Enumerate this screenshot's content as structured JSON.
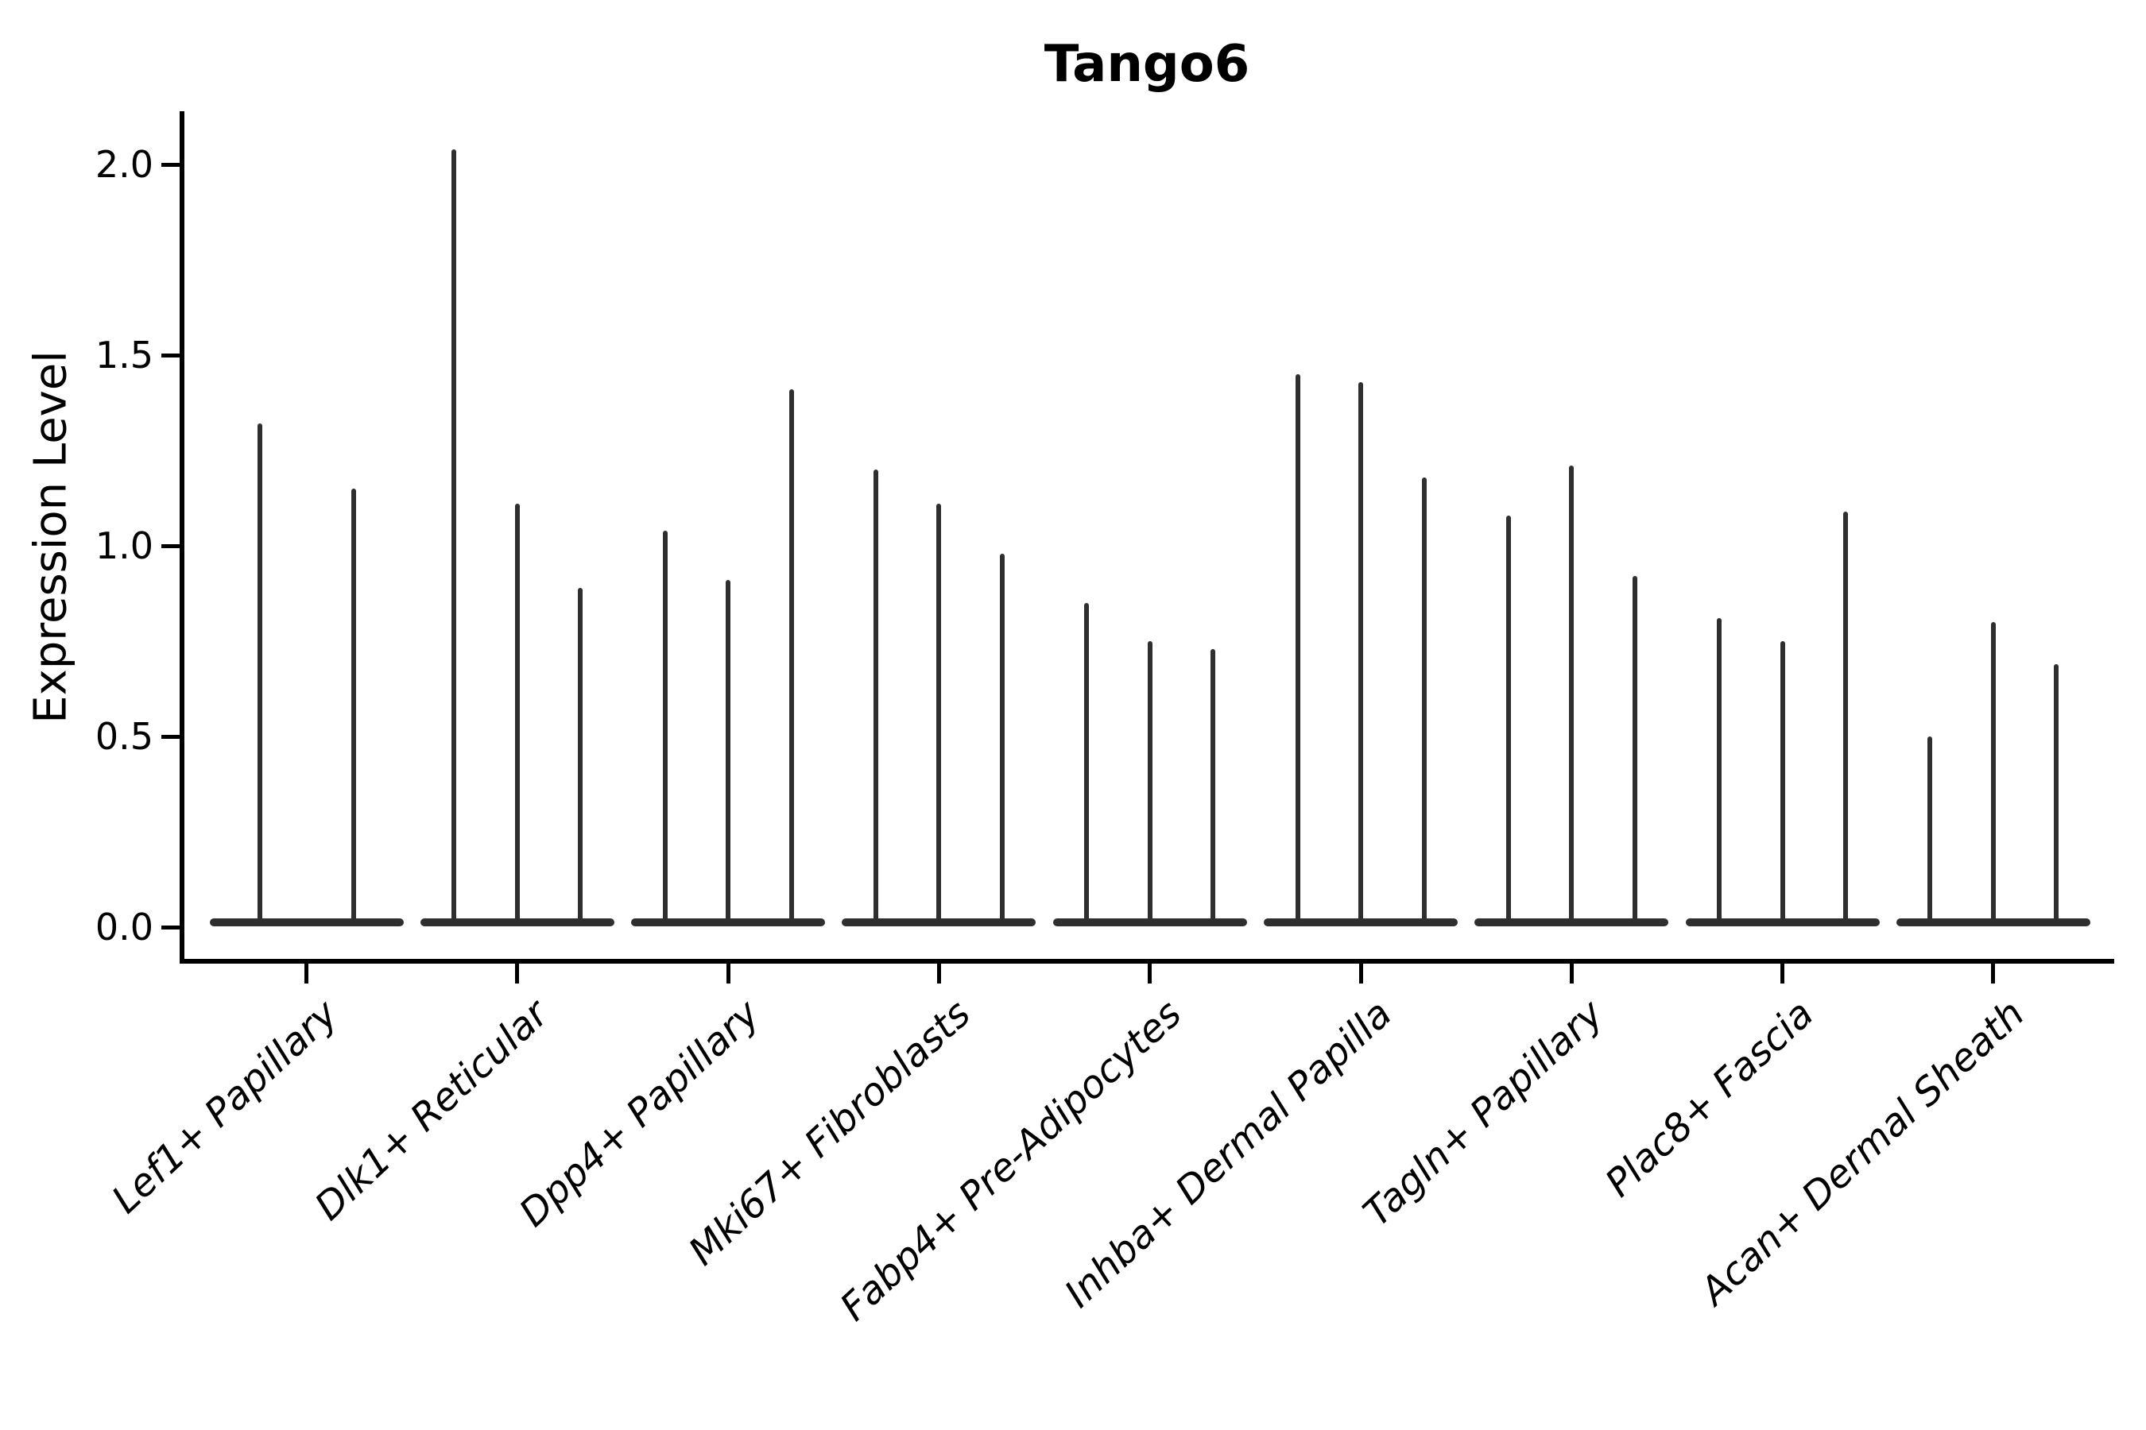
{
  "figure": {
    "background": "#ffffff"
  },
  "chart_data": {
    "type": "violin",
    "title": "Tango6",
    "xlabel": "",
    "ylabel": "Expression Level",
    "ylim": [
      0,
      2.14
    ],
    "yticks": [
      0.0,
      0.5,
      1.0,
      1.5,
      2.0
    ],
    "ytick_labels": [
      "0.0",
      "0.5",
      "1.0",
      "1.5",
      "2.0"
    ],
    "grid": false,
    "legend": null,
    "spines": [
      "left",
      "bottom"
    ],
    "categories": [
      "Lef1+ Papillary",
      "Dlk1+ Reticular",
      "Dpp4+ Papillary",
      "Mki67+ Fibroblasts",
      "Fabp4+ Pre-Adipocytes",
      "Inhba+ Dermal Papilla",
      "Tagln+ Papillary",
      "Plac8+ Fascia",
      "Acan+ Dermal Sheath"
    ],
    "series": [
      {
        "category": "Lef1+ Papillary",
        "violin_tip_values": [
          1.32,
          1.15
        ]
      },
      {
        "category": "Dlk1+ Reticular",
        "violin_tip_values": [
          2.04,
          1.11,
          0.89
        ]
      },
      {
        "category": "Dpp4+ Papillary",
        "violin_tip_values": [
          1.04,
          0.91,
          1.41
        ]
      },
      {
        "category": "Mki67+ Fibroblasts",
        "violin_tip_values": [
          1.2,
          1.11,
          0.98
        ]
      },
      {
        "category": "Fabp4+ Pre-Adipocytes",
        "violin_tip_values": [
          0.85,
          0.75,
          0.73
        ]
      },
      {
        "category": "Inhba+ Dermal Papilla",
        "violin_tip_values": [
          1.45,
          1.43,
          1.18
        ]
      },
      {
        "category": "Tagln+ Papillary",
        "violin_tip_values": [
          1.08,
          1.21,
          0.92
        ]
      },
      {
        "category": "Plac8+ Fascia",
        "violin_tip_values": [
          0.81,
          0.75,
          1.09
        ]
      },
      {
        "category": "Acan+ Dermal Sheath",
        "violin_tip_values": [
          0.5,
          0.8,
          0.69
        ]
      }
    ],
    "style": {
      "violin_color": "#2f2f2f",
      "axis_color": "#000000",
      "text_color": "#000000",
      "xtick_label_style": "italic",
      "xtick_label_rotation_deg": 43
    }
  }
}
